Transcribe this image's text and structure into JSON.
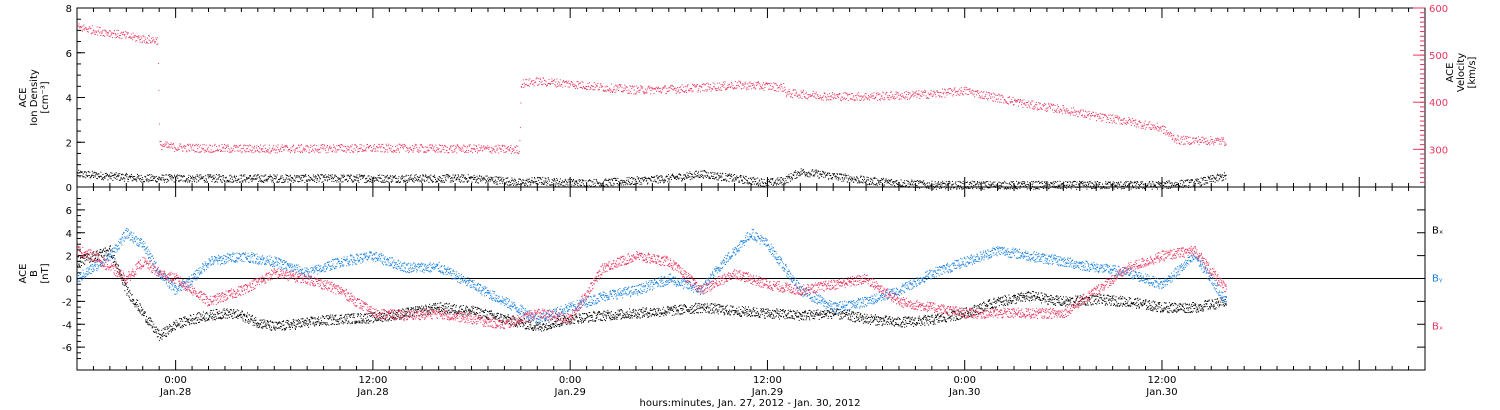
{
  "figure": {
    "xlabel": "hours:minutes, Jan. 27, 2012 - Jan. 30, 2012",
    "x_ticks": [
      {
        "hour": 24,
        "time": "0:00",
        "date": "Jan.28"
      },
      {
        "hour": 36,
        "time": "12:00",
        "date": "Jan.28"
      },
      {
        "hour": 48,
        "time": "0:00",
        "date": "Jan.29"
      },
      {
        "hour": 60,
        "time": "12:00",
        "date": "Jan.29"
      },
      {
        "hour": 72,
        "time": "0:00",
        "date": "Jan.30"
      },
      {
        "hour": 84,
        "time": "12:00",
        "date": "Jan.30"
      }
    ],
    "x_range_hours": [
      18,
      100
    ]
  },
  "colors": {
    "black": "#000000",
    "red": "#e8365e",
    "blue": "#1a82e0"
  },
  "chart_data": [
    {
      "type": "scatter",
      "panel": "top",
      "ylabel": [
        "ACE",
        "Ion Density",
        "[cm⁻³]"
      ],
      "ylim": [
        0,
        8
      ],
      "yticks": [
        0,
        2,
        4,
        6,
        8
      ],
      "y2label": [
        "ACE",
        "Velocity",
        "[km/s]"
      ],
      "y2lim": [
        220,
        600
      ],
      "y2ticks": [
        300,
        400,
        500,
        600
      ],
      "series": [
        {
          "axis": "left",
          "color": "black",
          "x": [
            18,
            20,
            22,
            24,
            26,
            28,
            30,
            32,
            34,
            36,
            38,
            40,
            42,
            44,
            45,
            46,
            48,
            50,
            52,
            54,
            56,
            58,
            60,
            61,
            62,
            64,
            66,
            68,
            70,
            72,
            74,
            76,
            78,
            80,
            82,
            84,
            86,
            87.9
          ],
          "y": [
            0.6,
            0.5,
            0.4,
            0.4,
            0.4,
            0.4,
            0.4,
            0.4,
            0.4,
            0.4,
            0.4,
            0.4,
            0.4,
            0.3,
            0.2,
            0.3,
            0.2,
            0.2,
            0.3,
            0.4,
            0.6,
            0.4,
            0.2,
            0.3,
            0.7,
            0.5,
            0.3,
            0.2,
            0.1,
            0.1,
            0.1,
            0.1,
            0.1,
            0.1,
            0.1,
            0.1,
            0.2,
            0.5
          ]
        },
        {
          "axis": "right",
          "color": "red",
          "x": [
            18,
            20,
            22,
            22.9,
            23,
            24,
            26,
            28,
            30,
            32,
            34,
            36,
            38,
            40,
            42,
            44,
            44.9,
            45,
            46,
            48,
            50,
            52,
            54,
            56,
            58,
            60,
            61,
            61.1,
            62,
            64,
            66,
            68,
            70,
            72,
            74,
            76,
            78,
            80,
            82,
            84,
            84.5,
            85,
            86,
            87.9
          ],
          "y": [
            560,
            548,
            535,
            532,
            310,
            305,
            303,
            302,
            302,
            302,
            303,
            303,
            303,
            302,
            302,
            301,
            300,
            440,
            445,
            440,
            432,
            427,
            428,
            432,
            437,
            435,
            432,
            420,
            418,
            413,
            413,
            415,
            418,
            425,
            410,
            395,
            385,
            370,
            360,
            345,
            330,
            320,
            320,
            318
          ]
        }
      ]
    },
    {
      "type": "scatter",
      "panel": "bottom",
      "ylabel": [
        "ACE",
        "B",
        "[nT]"
      ],
      "ylim": [
        -8,
        8
      ],
      "yticks": [
        -6,
        -4,
        -2,
        0,
        2,
        4,
        6
      ],
      "legend": [
        "Bₓ",
        "Bᵧ",
        "Bₓ"
      ],
      "series": [
        {
          "name": "Bx",
          "color": "black",
          "x": [
            18,
            19,
            20,
            21,
            22,
            23,
            24,
            25,
            26,
            27,
            28,
            29,
            30,
            32,
            34,
            36,
            38,
            40,
            42,
            44,
            46,
            48,
            50,
            52,
            54,
            56,
            58,
            60,
            62,
            64,
            66,
            68,
            70,
            72,
            74,
            76,
            78,
            80,
            82,
            84,
            86,
            87.9
          ],
          "y": [
            1.5,
            2.0,
            2.5,
            -1.0,
            -3.0,
            -5.0,
            -4.0,
            -3.5,
            -3.2,
            -3.0,
            -3.2,
            -3.8,
            -4.2,
            -3.8,
            -3.5,
            -3.4,
            -3.0,
            -2.5,
            -2.8,
            -3.5,
            -4.2,
            -3.5,
            -3.2,
            -3.0,
            -2.8,
            -2.5,
            -2.8,
            -3.0,
            -3.2,
            -3.0,
            -3.5,
            -3.8,
            -3.6,
            -3.0,
            -2.0,
            -1.5,
            -2.0,
            -1.8,
            -2.0,
            -2.5,
            -2.5,
            -2.0
          ]
        },
        {
          "name": "By",
          "color": "blue",
          "x": [
            18,
            19,
            20,
            21,
            22,
            23,
            24,
            25,
            26,
            28,
            30,
            32,
            34,
            36,
            38,
            40,
            42,
            44,
            46,
            48,
            50,
            52,
            54,
            56,
            57,
            58,
            59,
            60,
            62,
            64,
            66,
            68,
            70,
            72,
            74,
            76,
            78,
            80,
            82,
            84,
            86,
            87.9
          ],
          "y": [
            0.0,
            1.0,
            2.0,
            4.0,
            3.0,
            0.5,
            -1.0,
            0.0,
            1.5,
            2.0,
            1.5,
            0.5,
            1.5,
            2.0,
            1.0,
            1.0,
            -0.5,
            -2.0,
            -3.5,
            -2.5,
            -1.5,
            -1.0,
            0.0,
            -1.0,
            1.0,
            2.5,
            4.0,
            3.0,
            -1.0,
            -2.5,
            -2.0,
            -1.0,
            0.5,
            1.5,
            2.5,
            2.0,
            1.5,
            1.0,
            0.5,
            -0.5,
            2.0,
            -2.0
          ]
        },
        {
          "name": "Bz",
          "color": "red",
          "x": [
            18,
            19,
            20,
            21,
            22,
            23,
            24,
            25,
            26,
            28,
            30,
            32,
            34,
            36,
            38,
            40,
            42,
            44,
            46,
            48,
            50,
            52,
            54,
            56,
            58,
            60,
            62,
            64,
            66,
            68,
            70,
            72,
            74,
            76,
            78,
            80,
            82,
            84,
            86,
            87.9
          ],
          "y": [
            2.5,
            2.0,
            1.0,
            0.0,
            1.5,
            0.5,
            0.0,
            -1.0,
            -2.0,
            -1.0,
            0.5,
            0.0,
            -1.0,
            -3.0,
            -3.2,
            -3.0,
            -3.5,
            -4.0,
            -3.0,
            -3.5,
            1.0,
            2.0,
            1.5,
            -1.0,
            0.5,
            -0.5,
            -1.0,
            -0.5,
            0.0,
            -2.0,
            -2.5,
            -3.0,
            -3.0,
            -3.0,
            -3.0,
            -1.0,
            1.0,
            2.0,
            2.5,
            -1.0
          ]
        }
      ]
    }
  ]
}
